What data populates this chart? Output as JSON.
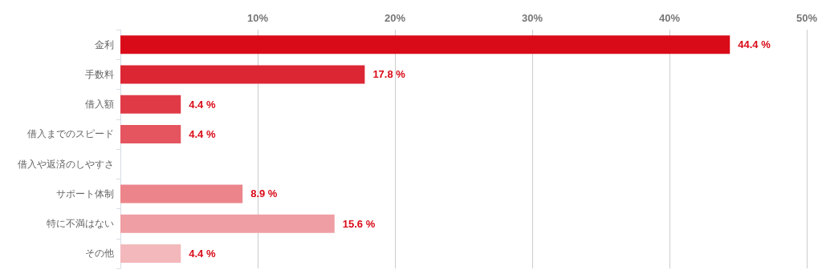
{
  "chart_data": {
    "type": "bar",
    "orientation": "horizontal",
    "categories": [
      "金利",
      "手数料",
      "借入額",
      "借入までのスピード",
      "借入や返済のしやすさ",
      "サポート体制",
      "特に不満はない",
      "その他"
    ],
    "values": [
      44.4,
      17.8,
      4.4,
      4.4,
      null,
      8.9,
      15.6,
      4.4
    ],
    "colors": [
      "#d90b18",
      "#dc2634",
      "#e03a47",
      "#e4555f",
      "#e86d75",
      "#eb858b",
      "#ef9ea3",
      "#f3b8bb"
    ],
    "value_labels": [
      "44.4 %",
      "17.8 %",
      "4.4 %",
      "4.4 %",
      null,
      "8.9 %",
      "15.6 %",
      "4.4 %"
    ],
    "xlim": [
      0,
      50
    ],
    "xticks": [
      {
        "value": 0,
        "label": null
      },
      {
        "value": 10,
        "label": "10%"
      },
      {
        "value": 20,
        "label": "20%"
      },
      {
        "value": 30,
        "label": "30%"
      },
      {
        "value": 40,
        "label": "40%"
      },
      {
        "value": 50,
        "label": "50%"
      }
    ],
    "grid": "x"
  }
}
